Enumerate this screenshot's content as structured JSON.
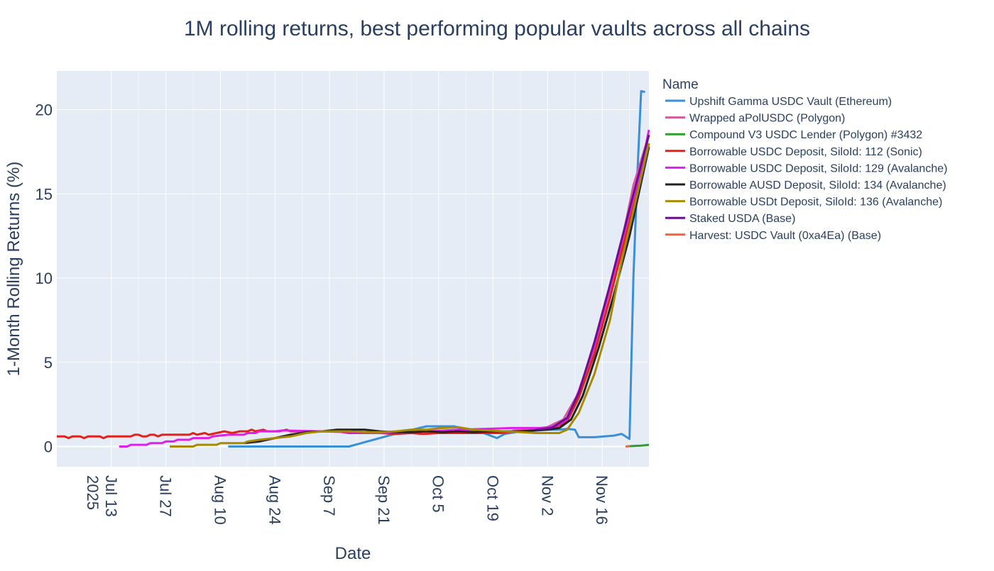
{
  "chart_data": {
    "type": "line",
    "title": "1M rolling returns, best performing popular vaults across all chains",
    "xlabel": "Date",
    "ylabel": "1-Month Rolling Returns (%)",
    "x_range": [
      "2025-06-29",
      "2025-11-28"
    ],
    "ylim": [
      -1.2,
      22.3
    ],
    "grid": true,
    "x_ticks": [
      {
        "date": "2025-07-13",
        "label": "Jul 13",
        "sub": "2025"
      },
      {
        "date": "2025-07-27",
        "label": "Jul 27",
        "sub": ""
      },
      {
        "date": "2025-08-10",
        "label": "Aug 10",
        "sub": ""
      },
      {
        "date": "2025-08-24",
        "label": "Aug 24",
        "sub": ""
      },
      {
        "date": "2025-09-07",
        "label": "Sep 7",
        "sub": ""
      },
      {
        "date": "2025-09-21",
        "label": "Sep 21",
        "sub": ""
      },
      {
        "date": "2025-10-05",
        "label": "Oct 5",
        "sub": ""
      },
      {
        "date": "2025-10-19",
        "label": "Oct 19",
        "sub": ""
      },
      {
        "date": "2025-11-02",
        "label": "Nov 2",
        "sub": ""
      },
      {
        "date": "2025-11-16",
        "label": "Nov 16",
        "sub": ""
      }
    ],
    "y_ticks": [
      0,
      5,
      10,
      15,
      20
    ],
    "legend": {
      "title": "Name",
      "placement": "right"
    },
    "series": [
      {
        "name": "Upshift Gamma USDC Vault (Ethereum)",
        "color": "#3a8fd9",
        "points": [
          [
            "2025-08-12",
            0
          ],
          [
            "2025-09-02",
            0
          ],
          [
            "2025-09-12",
            0
          ],
          [
            "2025-09-23",
            0.7
          ],
          [
            "2025-09-30",
            1.1
          ],
          [
            "2025-10-02",
            1.2
          ],
          [
            "2025-10-09",
            1.2
          ],
          [
            "2025-10-12",
            1.0
          ],
          [
            "2025-10-16",
            0.85
          ],
          [
            "2025-10-20",
            0.5
          ],
          [
            "2025-10-22",
            0.75
          ],
          [
            "2025-10-29",
            1.0
          ],
          [
            "2025-11-05",
            1.0
          ],
          [
            "2025-11-07",
            1.05
          ],
          [
            "2025-11-09",
            1.0
          ],
          [
            "2025-11-10",
            0.55
          ],
          [
            "2025-11-14",
            0.55
          ],
          [
            "2025-11-19",
            0.65
          ],
          [
            "2025-11-21",
            0.75
          ],
          [
            "2025-11-23",
            0.45
          ],
          [
            "2025-11-24",
            10.0
          ],
          [
            "2025-11-25",
            16.0
          ],
          [
            "2025-11-26",
            21.1
          ],
          [
            "2025-11-27",
            21.05
          ]
        ]
      },
      {
        "name": "Wrapped aPolUSDC (Polygon)",
        "color": "#d45a9e",
        "points": [
          [
            "2025-10-24",
            0.95
          ],
          [
            "2025-11-01",
            1.05
          ],
          [
            "2025-11-06",
            1.6
          ],
          [
            "2025-11-10",
            3.2
          ],
          [
            "2025-11-15",
            6.5
          ],
          [
            "2025-11-20",
            11.0
          ],
          [
            "2025-11-24",
            15.5
          ],
          [
            "2025-11-28",
            18.5
          ]
        ]
      },
      {
        "name": "Compound V3 USDC Lender (Polygon) #3432",
        "color": "#2ca02c",
        "points": [
          [
            "2025-11-23",
            0.02
          ],
          [
            "2025-11-26",
            0.05
          ],
          [
            "2025-11-28",
            0.1
          ]
        ]
      },
      {
        "name": "Borrowable USDC Deposit, SiloId: 112 (Sonic)",
        "color": "#e0211c",
        "points": [
          [
            "2025-06-29",
            0.6
          ],
          [
            "2025-07-01",
            0.6
          ],
          [
            "2025-07-02",
            0.5
          ],
          [
            "2025-07-03",
            0.6
          ],
          [
            "2025-07-05",
            0.6
          ],
          [
            "2025-07-06",
            0.5
          ],
          [
            "2025-07-07",
            0.6
          ],
          [
            "2025-07-10",
            0.6
          ],
          [
            "2025-07-11",
            0.5
          ],
          [
            "2025-07-12",
            0.6
          ],
          [
            "2025-07-18",
            0.6
          ],
          [
            "2025-07-19",
            0.7
          ],
          [
            "2025-07-20",
            0.7
          ],
          [
            "2025-07-21",
            0.6
          ],
          [
            "2025-07-22",
            0.6
          ],
          [
            "2025-07-23",
            0.7
          ],
          [
            "2025-07-24",
            0.7
          ],
          [
            "2025-07-25",
            0.6
          ],
          [
            "2025-07-26",
            0.7
          ],
          [
            "2025-08-02",
            0.7
          ],
          [
            "2025-08-03",
            0.8
          ],
          [
            "2025-08-04",
            0.7
          ],
          [
            "2025-08-06",
            0.8
          ],
          [
            "2025-08-07",
            0.7
          ],
          [
            "2025-08-09",
            0.8
          ],
          [
            "2025-08-11",
            0.9
          ],
          [
            "2025-08-13",
            0.8
          ],
          [
            "2025-08-15",
            0.9
          ],
          [
            "2025-08-17",
            0.9
          ],
          [
            "2025-08-18",
            1.0
          ],
          [
            "2025-08-19",
            0.9
          ],
          [
            "2025-08-21",
            1.0
          ],
          [
            "2025-08-22",
            0.9
          ],
          [
            "2025-08-25",
            0.9
          ],
          [
            "2025-08-27",
            1.0
          ],
          [
            "2025-08-28",
            0.9
          ],
          [
            "2025-09-05",
            0.9
          ],
          [
            "2025-09-09",
            0.9
          ],
          [
            "2025-09-12",
            0.8
          ],
          [
            "2025-09-16",
            0.8
          ],
          [
            "2025-09-20",
            0.8
          ],
          [
            "2025-09-24",
            0.75
          ],
          [
            "2025-09-28",
            0.8
          ],
          [
            "2025-10-01",
            0.75
          ],
          [
            "2025-10-05",
            0.8
          ],
          [
            "2025-10-09",
            0.8
          ],
          [
            "2025-10-13",
            0.8
          ],
          [
            "2025-10-17",
            0.8
          ],
          [
            "2025-10-21",
            0.8
          ],
          [
            "2025-10-25",
            0.9
          ],
          [
            "2025-10-29",
            0.95
          ],
          [
            "2025-11-01",
            1.0
          ],
          [
            "2025-11-04",
            1.15
          ],
          [
            "2025-11-07",
            1.5
          ],
          [
            "2025-11-10",
            2.9
          ],
          [
            "2025-11-14",
            5.5
          ],
          [
            "2025-11-18",
            8.8
          ],
          [
            "2025-11-22",
            12.5
          ],
          [
            "2025-11-26",
            16.0
          ],
          [
            "2025-11-28",
            18.0
          ]
        ]
      },
      {
        "name": "Borrowable USDC Deposit, SiloId: 129 (Avalanche)",
        "color": "#e11ee8",
        "points": [
          [
            "2025-07-15",
            0.0
          ],
          [
            "2025-07-17",
            0.0
          ],
          [
            "2025-07-18",
            0.1
          ],
          [
            "2025-07-22",
            0.1
          ],
          [
            "2025-07-23",
            0.2
          ],
          [
            "2025-07-26",
            0.2
          ],
          [
            "2025-07-27",
            0.3
          ],
          [
            "2025-07-29",
            0.3
          ],
          [
            "2025-07-30",
            0.4
          ],
          [
            "2025-08-02",
            0.4
          ],
          [
            "2025-08-03",
            0.5
          ],
          [
            "2025-08-07",
            0.5
          ],
          [
            "2025-08-08",
            0.6
          ],
          [
            "2025-08-12",
            0.7
          ],
          [
            "2025-08-16",
            0.7
          ],
          [
            "2025-08-17",
            0.8
          ],
          [
            "2025-08-19",
            0.8
          ],
          [
            "2025-08-20",
            0.9
          ],
          [
            "2025-08-24",
            0.9
          ],
          [
            "2025-08-26",
            0.95
          ],
          [
            "2025-09-05",
            0.9
          ],
          [
            "2025-09-12",
            0.85
          ],
          [
            "2025-09-19",
            0.8
          ],
          [
            "2025-09-26",
            0.85
          ],
          [
            "2025-10-03",
            0.9
          ],
          [
            "2025-10-10",
            1.0
          ],
          [
            "2025-10-17",
            1.05
          ],
          [
            "2025-10-24",
            1.1
          ],
          [
            "2025-10-31",
            1.1
          ],
          [
            "2025-11-04",
            1.2
          ],
          [
            "2025-11-07",
            1.6
          ],
          [
            "2025-11-10",
            3.3
          ],
          [
            "2025-11-14",
            6.0
          ],
          [
            "2025-11-18",
            9.5
          ],
          [
            "2025-11-22",
            13.0
          ],
          [
            "2025-11-26",
            16.5
          ],
          [
            "2025-11-28",
            18.8
          ]
        ]
      },
      {
        "name": "Borrowable AUSD Deposit, SiloId: 134 (Avalanche)",
        "color": "#222222",
        "points": [
          [
            "2025-08-16",
            0.2
          ],
          [
            "2025-08-20",
            0.3
          ],
          [
            "2025-08-24",
            0.5
          ],
          [
            "2025-08-28",
            0.7
          ],
          [
            "2025-09-01",
            0.85
          ],
          [
            "2025-09-05",
            0.9
          ],
          [
            "2025-09-09",
            1.0
          ],
          [
            "2025-09-12",
            1.0
          ],
          [
            "2025-09-16",
            1.0
          ],
          [
            "2025-09-20",
            0.9
          ],
          [
            "2025-09-24",
            0.85
          ],
          [
            "2025-09-28",
            0.85
          ],
          [
            "2025-10-02",
            0.9
          ],
          [
            "2025-10-06",
            0.85
          ],
          [
            "2025-10-10",
            0.9
          ],
          [
            "2025-10-14",
            0.85
          ],
          [
            "2025-10-18",
            0.9
          ],
          [
            "2025-10-22",
            0.9
          ],
          [
            "2025-10-26",
            0.9
          ],
          [
            "2025-10-30",
            0.95
          ],
          [
            "2025-11-02",
            1.0
          ],
          [
            "2025-11-05",
            1.1
          ],
          [
            "2025-11-08",
            1.6
          ],
          [
            "2025-11-11",
            3.0
          ],
          [
            "2025-11-15",
            5.8
          ],
          [
            "2025-11-19",
            9.0
          ],
          [
            "2025-11-23",
            12.5
          ],
          [
            "2025-11-28",
            17.8
          ]
        ]
      },
      {
        "name": "Borrowable USDt Deposit, SiloId: 136 (Avalanche)",
        "color": "#a88a00",
        "points": [
          [
            "2025-07-28",
            0.0
          ],
          [
            "2025-08-03",
            0.0
          ],
          [
            "2025-08-04",
            0.1
          ],
          [
            "2025-08-09",
            0.1
          ],
          [
            "2025-08-10",
            0.2
          ],
          [
            "2025-08-16",
            0.2
          ],
          [
            "2025-08-17",
            0.3
          ],
          [
            "2025-08-20",
            0.4
          ],
          [
            "2025-08-24",
            0.5
          ],
          [
            "2025-08-28",
            0.6
          ],
          [
            "2025-09-01",
            0.8
          ],
          [
            "2025-09-05",
            0.9
          ],
          [
            "2025-09-12",
            0.9
          ],
          [
            "2025-09-16",
            0.85
          ],
          [
            "2025-09-20",
            0.85
          ],
          [
            "2025-09-24",
            0.9
          ],
          [
            "2025-09-28",
            1.0
          ],
          [
            "2025-10-02",
            1.0
          ],
          [
            "2025-10-06",
            1.1
          ],
          [
            "2025-10-10",
            1.15
          ],
          [
            "2025-10-14",
            1.0
          ],
          [
            "2025-10-18",
            0.95
          ],
          [
            "2025-10-22",
            0.9
          ],
          [
            "2025-10-26",
            0.85
          ],
          [
            "2025-10-30",
            0.8
          ],
          [
            "2025-11-03",
            0.8
          ],
          [
            "2025-11-05",
            0.8
          ],
          [
            "2025-11-07",
            1.0
          ],
          [
            "2025-11-10",
            2.0
          ],
          [
            "2025-11-14",
            4.3
          ],
          [
            "2025-11-18",
            7.5
          ],
          [
            "2025-11-21",
            11.0
          ],
          [
            "2025-11-24",
            14.0
          ],
          [
            "2025-11-28",
            18.0
          ]
        ]
      },
      {
        "name": "Staked USDA (Base)",
        "color": "#6a0f8e",
        "points": [
          [
            "2025-10-30",
            1.0
          ],
          [
            "2025-11-03",
            1.1
          ],
          [
            "2025-11-07",
            1.7
          ],
          [
            "2025-11-10",
            3.2
          ],
          [
            "2025-11-14",
            6.2
          ],
          [
            "2025-11-18",
            9.6
          ],
          [
            "2025-11-22",
            13.2
          ],
          [
            "2025-11-28",
            18.5
          ]
        ]
      },
      {
        "name": "Harvest: USDC Vault (0xa4Ea) (Base)",
        "color": "#f0643c",
        "points": [
          [
            "2025-11-22",
            0.0
          ],
          [
            "2025-11-23",
            0.02
          ]
        ]
      }
    ]
  }
}
